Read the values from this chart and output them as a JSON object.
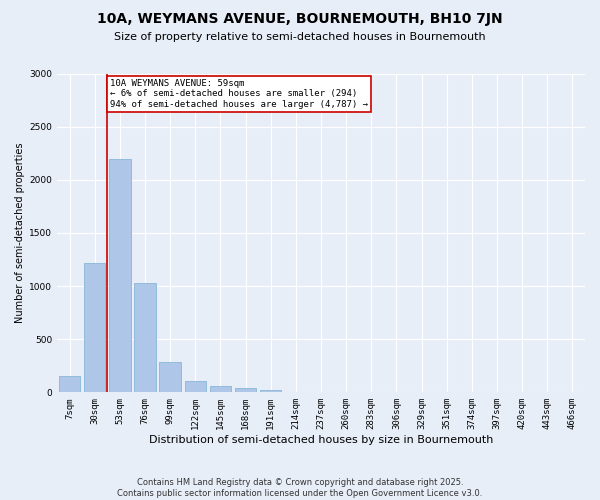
{
  "title": "10A, WEYMANS AVENUE, BOURNEMOUTH, BH10 7JN",
  "subtitle": "Size of property relative to semi-detached houses in Bournemouth",
  "xlabel": "Distribution of semi-detached houses by size in Bournemouth",
  "ylabel": "Number of semi-detached properties",
  "footer1": "Contains HM Land Registry data © Crown copyright and database right 2025.",
  "footer2": "Contains public sector information licensed under the Open Government Licence v3.0.",
  "categories": [
    "7sqm",
    "30sqm",
    "53sqm",
    "76sqm",
    "99sqm",
    "122sqm",
    "145sqm",
    "168sqm",
    "191sqm",
    "214sqm",
    "237sqm",
    "260sqm",
    "283sqm",
    "306sqm",
    "329sqm",
    "351sqm",
    "374sqm",
    "397sqm",
    "420sqm",
    "443sqm",
    "466sqm"
  ],
  "values": [
    150,
    1220,
    2200,
    1030,
    290,
    110,
    55,
    40,
    20,
    0,
    0,
    0,
    0,
    0,
    0,
    0,
    0,
    0,
    0,
    0,
    0
  ],
  "bar_color": "#aec6e8",
  "bar_edge_color": "#7aafd4",
  "vline_x": 1.5,
  "vline_color": "#cc0000",
  "annotation_title": "10A WEYMANS AVENUE: 59sqm",
  "annotation_line1": "← 6% of semi-detached houses are smaller (294)",
  "annotation_line2": "94% of semi-detached houses are larger (4,787) →",
  "annotation_box_color": "#cc0000",
  "ylim": [
    0,
    3000
  ],
  "yticks": [
    0,
    500,
    1000,
    1500,
    2000,
    2500,
    3000
  ],
  "bg_color": "#e8eef8",
  "plot_bg_color": "#e8eef8",
  "grid_color": "#ffffff",
  "title_fontsize": 10,
  "subtitle_fontsize": 8,
  "xlabel_fontsize": 8,
  "ylabel_fontsize": 7,
  "tick_fontsize": 6.5,
  "annot_fontsize": 6.5,
  "footer_fontsize": 6
}
